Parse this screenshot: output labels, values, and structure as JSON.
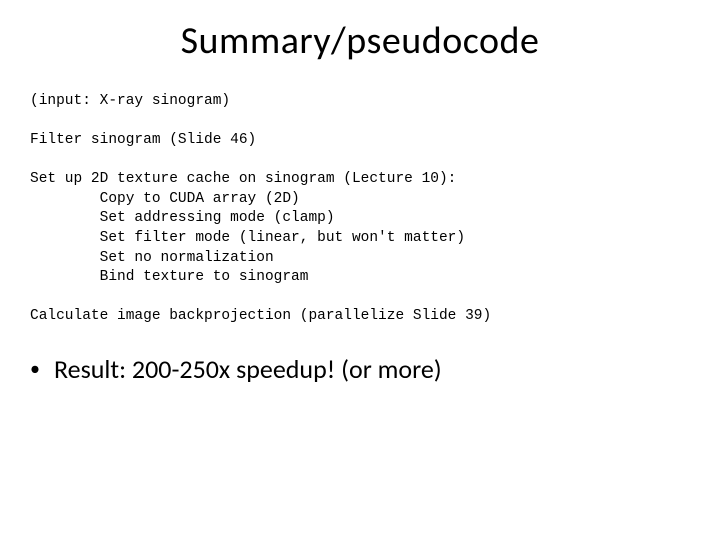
{
  "title": "Summary/pseudocode",
  "code": {
    "l1": "(input: X-ray sinogram)",
    "l2": "Filter sinogram (Slide 46)",
    "l3": "Set up 2D texture cache on sinogram (Lecture 10):",
    "l4": "        Copy to CUDA array (2D)",
    "l5": "        Set addressing mode (clamp)",
    "l6": "        Set filter mode (linear, but won't matter)",
    "l7": "        Set no normalization",
    "l8": "        Bind texture to sinogram",
    "l9": "Calculate image backprojection (parallelize Slide 39)"
  },
  "result": "Result: 200-250x speedup! (or more)",
  "colors": {
    "background": "#ffffff",
    "text": "#000000"
  },
  "fonts": {
    "title_size": 38,
    "code_size": 14.5,
    "result_size": 26
  }
}
